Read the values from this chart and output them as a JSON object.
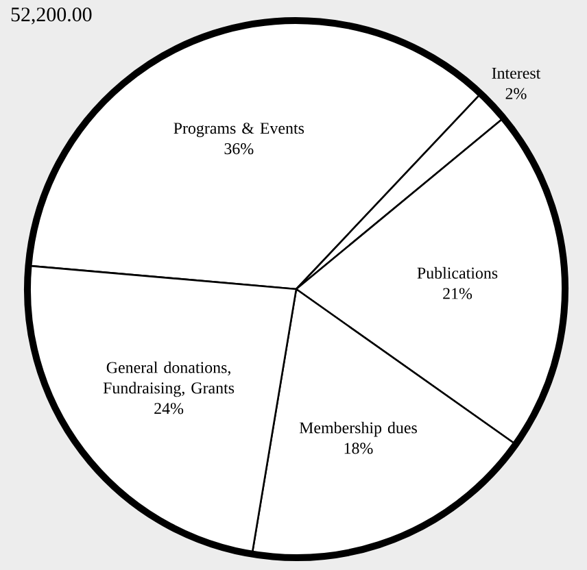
{
  "chart_data": {
    "type": "pie",
    "title": "52,200.00",
    "categories": [
      "Programs & Events",
      "Interest",
      "Publications",
      "Membership dues",
      "General donations, Fundraising, Grants"
    ],
    "values": [
      36,
      2,
      21,
      18,
      24
    ],
    "value_labels": [
      "36%",
      "2%",
      "21%",
      "18%",
      "24%"
    ],
    "colors": [
      "#ffffff",
      "#ffffff",
      "#ffffff",
      "#ffffff",
      "#ffffff"
    ]
  }
}
